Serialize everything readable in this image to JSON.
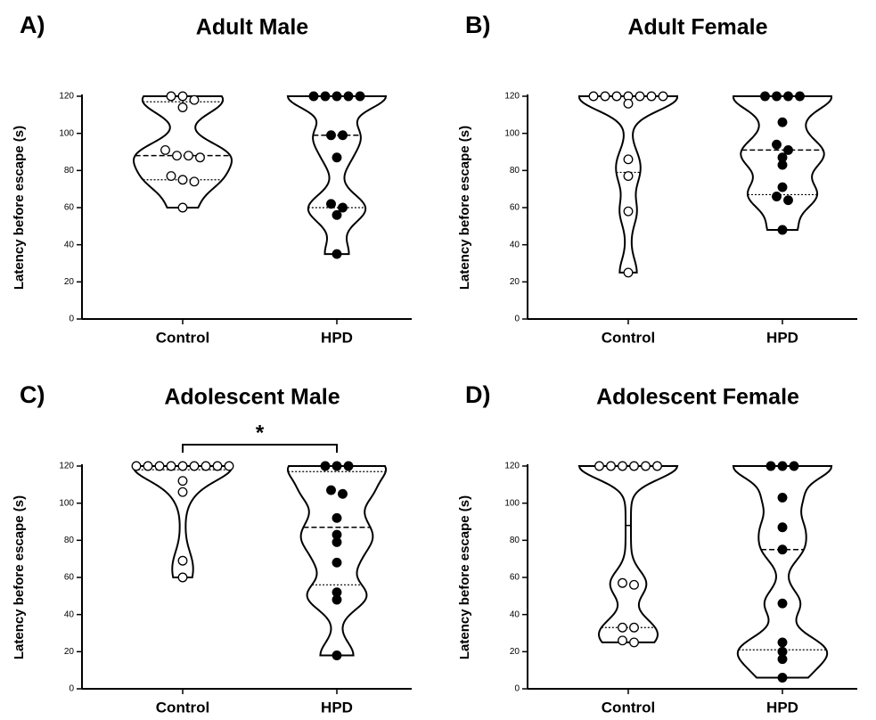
{
  "chart_data": [
    {
      "type": "violin",
      "panel_label": "A)",
      "title": "Adult Male",
      "ylabel": "Latency before escape (s)",
      "categories": [
        "Control",
        "HPD"
      ],
      "ylim": [
        0,
        120
      ],
      "yticks": [
        0,
        20,
        40,
        60,
        80,
        100,
        120
      ],
      "groups": [
        {
          "filled": false,
          "values": [
            120,
            120,
            118,
            114,
            91,
            88,
            88,
            87,
            77,
            75,
            74,
            60
          ],
          "median": 88,
          "q1": 75,
          "q3": 117
        },
        {
          "filled": true,
          "values": [
            120,
            120,
            120,
            120,
            120,
            99,
            99,
            87,
            62,
            60,
            56,
            35
          ],
          "median": 99,
          "q1": 60,
          "q3": 120
        }
      ]
    },
    {
      "type": "violin",
      "panel_label": "B)",
      "title": "Adult Female",
      "ylabel": "Latency before escape (s)",
      "categories": [
        "Control",
        "HPD"
      ],
      "ylim": [
        0,
        120
      ],
      "yticks": [
        0,
        20,
        40,
        60,
        80,
        100,
        120
      ],
      "groups": [
        {
          "filled": false,
          "values": [
            120,
            120,
            120,
            120,
            120,
            120,
            120,
            116,
            86,
            77,
            58,
            25
          ],
          "median": 120,
          "q1": 79,
          "q3": 120
        },
        {
          "filled": true,
          "values": [
            120,
            120,
            120,
            120,
            106,
            94,
            91,
            87,
            83,
            71,
            66,
            64,
            48
          ],
          "median": 91,
          "q1": 67,
          "q3": 120
        }
      ]
    },
    {
      "type": "violin",
      "panel_label": "C)",
      "title": "Adolescent Male",
      "ylabel": "Latency before escape (s)",
      "categories": [
        "Control",
        "HPD"
      ],
      "ylim": [
        0,
        120
      ],
      "yticks": [
        0,
        20,
        40,
        60,
        80,
        100,
        120
      ],
      "annotation": "*",
      "groups": [
        {
          "filled": false,
          "values": [
            120,
            120,
            120,
            120,
            120,
            120,
            120,
            120,
            120,
            112,
            106,
            69,
            60
          ],
          "median": 120,
          "q1": 118,
          "q3": 120
        },
        {
          "filled": true,
          "values": [
            120,
            120,
            120,
            107,
            105,
            92,
            83,
            79,
            68,
            52,
            48,
            18
          ],
          "median": 87,
          "q1": 56,
          "q3": 117
        }
      ]
    },
    {
      "type": "violin",
      "panel_label": "D)",
      "title": "Adolescent Female",
      "ylabel": "Latency before escape (s)",
      "categories": [
        "Control",
        "HPD"
      ],
      "ylim": [
        0,
        120
      ],
      "yticks": [
        0,
        20,
        40,
        60,
        80,
        100,
        120
      ],
      "groups": [
        {
          "filled": false,
          "values": [
            120,
            120,
            120,
            120,
            120,
            120,
            57,
            56,
            33,
            33,
            26,
            25
          ],
          "median": 88,
          "q1": 33,
          "q3": 120
        },
        {
          "filled": true,
          "values": [
            120,
            120,
            120,
            103,
            87,
            75,
            46,
            25,
            20,
            16,
            6
          ],
          "median": 75,
          "q1": 21,
          "q3": 120
        }
      ]
    }
  ]
}
